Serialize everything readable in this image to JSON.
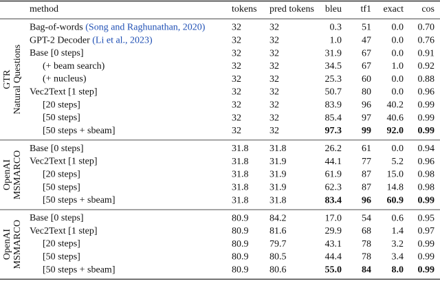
{
  "table": {
    "header": [
      "method",
      "tokens",
      "pred tokens",
      "bleu",
      "tf1",
      "exact",
      "cos"
    ],
    "groups": [
      {
        "label": [
          "GTR",
          "Natural Questions"
        ],
        "rows": [
          {
            "method": "Bag-of-words",
            "cite": "(Song and Raghunathan, 2020)",
            "indent": false,
            "cells": [
              "32",
              "32",
              "0.3",
              "51",
              "0.0",
              "0.70"
            ],
            "bold": []
          },
          {
            "method": "GPT-2 Decoder",
            "cite": "(Li et al., 2023)",
            "indent": false,
            "cells": [
              "32",
              "32",
              "1.0",
              "47",
              "0.0",
              "0.76"
            ],
            "bold": []
          },
          {
            "method": "Base [0 steps]",
            "indent": false,
            "cells": [
              "32",
              "32",
              "31.9",
              "67",
              "0.0",
              "0.91"
            ],
            "bold": []
          },
          {
            "method": "(+ beam search)",
            "indent": true,
            "cells": [
              "32",
              "32",
              "34.5",
              "67",
              "1.0",
              "0.92"
            ],
            "bold": []
          },
          {
            "method": "(+ nucleus)",
            "indent": true,
            "cells": [
              "32",
              "32",
              "25.3",
              "60",
              "0.0",
              "0.88"
            ],
            "bold": []
          },
          {
            "method": "Vec2Text [1 step]",
            "indent": false,
            "cells": [
              "32",
              "32",
              "50.7",
              "80",
              "0.0",
              "0.96"
            ],
            "bold": []
          },
          {
            "method": "[20 steps]",
            "indent": true,
            "cells": [
              "32",
              "32",
              "83.9",
              "96",
              "40.2",
              "0.99"
            ],
            "bold": []
          },
          {
            "method": "[50 steps]",
            "indent": true,
            "cells": [
              "32",
              "32",
              "85.4",
              "97",
              "40.6",
              "0.99"
            ],
            "bold": []
          },
          {
            "method": "[50 steps + sbeam]",
            "indent": true,
            "cells": [
              "32",
              "32",
              "97.3",
              "99",
              "92.0",
              "0.99"
            ],
            "bold": [
              2,
              3,
              4,
              5
            ]
          }
        ]
      },
      {
        "label": [
          "OpenAI",
          "MSMARCO"
        ],
        "rows": [
          {
            "method": "Base [0 steps]",
            "indent": false,
            "cells": [
              "31.8",
              "31.8",
              "26.2",
              "61",
              "0.0",
              "0.94"
            ],
            "bold": []
          },
          {
            "method": "Vec2Text [1 step]",
            "indent": false,
            "cells": [
              "31.8",
              "31.9",
              "44.1",
              "77",
              "5.2",
              "0.96"
            ],
            "bold": []
          },
          {
            "method": "[20 steps]",
            "indent": true,
            "cells": [
              "31.8",
              "31.9",
              "61.9",
              "87",
              "15.0",
              "0.98"
            ],
            "bold": []
          },
          {
            "method": "[50 steps]",
            "indent": true,
            "cells": [
              "31.8",
              "31.9",
              "62.3",
              "87",
              "14.8",
              "0.98"
            ],
            "bold": []
          },
          {
            "method": "[50 steps + sbeam]",
            "indent": true,
            "cells": [
              "31.8",
              "31.8",
              "83.4",
              "96",
              "60.9",
              "0.99"
            ],
            "bold": [
              2,
              3,
              4,
              5
            ]
          }
        ]
      },
      {
        "label": [
          "OpenAI",
          "MSMARCO"
        ],
        "rows": [
          {
            "method": "Base [0 steps]",
            "indent": false,
            "cells": [
              "80.9",
              "84.2",
              "17.0",
              "54",
              "0.6",
              "0.95"
            ],
            "bold": []
          },
          {
            "method": "Vec2Text [1 step]",
            "indent": false,
            "cells": [
              "80.9",
              "81.6",
              "29.9",
              "68",
              "1.4",
              "0.97"
            ],
            "bold": []
          },
          {
            "method": "[20 steps]",
            "indent": true,
            "cells": [
              "80.9",
              "79.7",
              "43.1",
              "78",
              "3.2",
              "0.99"
            ],
            "bold": []
          },
          {
            "method": "[50 steps]",
            "indent": true,
            "cells": [
              "80.9",
              "80.5",
              "44.4",
              "78",
              "3.4",
              "0.99"
            ],
            "bold": []
          },
          {
            "method": "[50 steps + sbeam]",
            "indent": true,
            "cells": [
              "80.9",
              "80.6",
              "55.0",
              "84",
              "8.0",
              "0.99"
            ],
            "bold": [
              2,
              3,
              4,
              5
            ]
          }
        ]
      }
    ]
  }
}
